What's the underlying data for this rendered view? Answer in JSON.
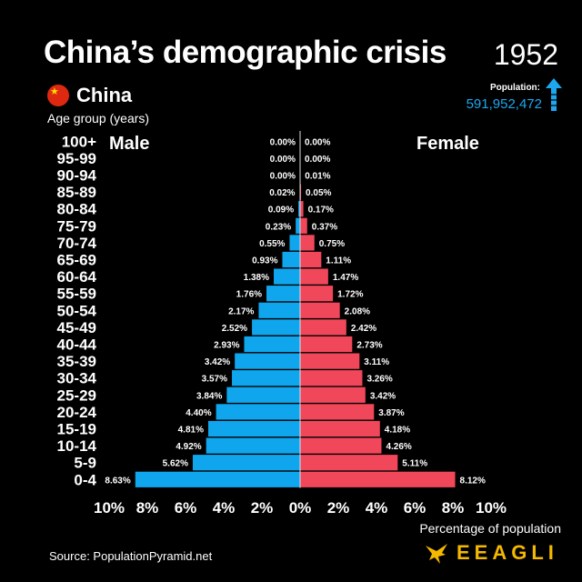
{
  "title": "China’s demographic crisis",
  "year": "1952",
  "country": "China",
  "age_axis_label": "Age group (years)",
  "population": {
    "label": "Population:",
    "value": "591,952,472"
  },
  "source": "Source: PopulationPyramid.net",
  "brand": "EEAGLI",
  "colors": {
    "male": "#0fa6ee",
    "female": "#f0485a",
    "accent": "#1ea7ef",
    "brand": "#f5b800"
  },
  "chart_data": {
    "type": "bar",
    "orientation": "horizontal-pyramid",
    "categories": [
      "100+",
      "95-99",
      "90-94",
      "85-89",
      "80-84",
      "75-79",
      "70-74",
      "65-69",
      "60-64",
      "55-59",
      "50-54",
      "45-49",
      "40-44",
      "35-39",
      "30-34",
      "25-29",
      "20-24",
      "15-19",
      "10-14",
      "5-9",
      "0-4"
    ],
    "series": [
      {
        "name": "Male",
        "values": [
          0.0,
          0.0,
          0.0,
          0.02,
          0.09,
          0.23,
          0.55,
          0.93,
          1.38,
          1.76,
          2.17,
          2.52,
          2.93,
          3.42,
          3.57,
          3.84,
          4.4,
          4.81,
          4.92,
          5.62,
          8.63
        ],
        "labels": [
          "0.00%",
          "0.00%",
          "0.00%",
          "0.02%",
          "0.09%",
          "0.23%",
          "0.55%",
          "0.93%",
          "1.38%",
          "1.76%",
          "2.17%",
          "2.52%",
          "2.93%",
          "3.42%",
          "3.57%",
          "3.84%",
          "4.40%",
          "4.81%",
          "4.92%",
          "5.62%",
          "8.63%"
        ]
      },
      {
        "name": "Female",
        "values": [
          0.0,
          0.0,
          0.01,
          0.05,
          0.17,
          0.37,
          0.75,
          1.11,
          1.47,
          1.72,
          2.08,
          2.42,
          2.73,
          3.11,
          3.26,
          3.42,
          3.87,
          4.18,
          4.26,
          5.11,
          8.12
        ],
        "labels": [
          "0.00%",
          "0.00%",
          "0.01%",
          "0.05%",
          "0.17%",
          "0.37%",
          "0.75%",
          "1.11%",
          "1.47%",
          "1.72%",
          "2.08%",
          "2.42%",
          "2.73%",
          "3.11%",
          "3.26%",
          "3.42%",
          "3.87%",
          "4.18%",
          "4.26%",
          "5.11%",
          "8.12%"
        ]
      }
    ],
    "xticks": [
      "10%",
      "8%",
      "6%",
      "4%",
      "2%",
      "0%",
      "2%",
      "4%",
      "6%",
      "8%",
      "10%"
    ],
    "xlim": [
      -10,
      10
    ],
    "xlabel": "Percentage of population",
    "legend": "Male top-left, Female top-right"
  }
}
